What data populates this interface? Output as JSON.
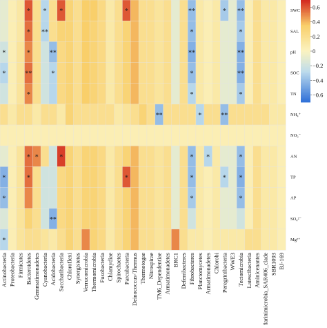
{
  "chart_data": {
    "type": "heatmap",
    "title": "",
    "xlabel": "",
    "ylabel": "",
    "x_categories": [
      "Actinobacteria",
      "Proteobacteria",
      "Firmicutes",
      "Bacteroidetes",
      "Gemmatimonadetes",
      "Cyanobacteria",
      "Acidobacteria",
      "Saccharibacteria",
      "Chloroflexi",
      "Synergistetes",
      "Verrucomicrobia",
      "Thermomicrobia",
      "Fusobacteria",
      "Chlamydiae",
      "Spirochaetes",
      "Parcubacteria",
      "Deinococcus-Thermus",
      "Thermotogae",
      "Nitrospirae",
      "TM6_Dependentiae",
      "Armatimonadetes",
      "BRC1",
      "Deferribacteres",
      "Fibrobacteres",
      "Planctomycetes",
      "Armatimonadetes",
      "Chlorobi",
      "Peregrinibacteria",
      "WWE3",
      "Tectomicrobia",
      "Latescibacteria",
      "Aminicenantes",
      "Marinimicrobia_SAR406_clade",
      "SBR1093",
      "BJ-169"
    ],
    "y_categories": [
      "SWC",
      "SAL",
      "pH",
      "SOC",
      "TN",
      "NH₄⁺",
      "NO₃⁻",
      "AN",
      "TP",
      "AP",
      "SO₄²⁻",
      "Mg²⁺"
    ],
    "values": [
      [
        -0.1,
        0.05,
        0.12,
        0.6,
        0.2,
        -0.3,
        0.2,
        0.6,
        0.3,
        0.2,
        0.35,
        0.35,
        0.25,
        0.1,
        0.2,
        0.6,
        0.4,
        0.2,
        0.2,
        0.15,
        0.2,
        -0.1,
        0.2,
        -0.4,
        0.1,
        0.05,
        0.1,
        -0.35,
        -0.1,
        -0.4,
        0.05,
        0.2,
        0.1,
        0.1,
        0.05
      ],
      [
        -0.1,
        0.05,
        0.12,
        0.55,
        0.2,
        -0.3,
        0.2,
        0.3,
        0.3,
        0.2,
        0.35,
        0.3,
        0.25,
        0.1,
        0.2,
        0.3,
        0.4,
        0.2,
        0.2,
        0.15,
        0.2,
        -0.1,
        0.2,
        -0.4,
        0.1,
        0.05,
        0.1,
        -0.1,
        -0.1,
        -0.35,
        0.05,
        0.2,
        0.1,
        0.1,
        0.05
      ],
      [
        -0.2,
        0.05,
        0.15,
        0.5,
        0.2,
        -0.2,
        -0.4,
        0.25,
        0.3,
        0.2,
        0.35,
        0.3,
        0.25,
        0.1,
        0.2,
        0.3,
        0.4,
        0.2,
        0.2,
        0.15,
        0.2,
        -0.1,
        0.2,
        -0.45,
        0.1,
        0.05,
        0.1,
        -0.1,
        -0.1,
        -0.45,
        0.05,
        0.2,
        0.1,
        0.1,
        0.05
      ],
      [
        -0.3,
        0.05,
        0.15,
        0.55,
        0.2,
        -0.2,
        -0.3,
        0.25,
        0.3,
        0.2,
        0.35,
        0.3,
        0.25,
        0.1,
        0.2,
        0.3,
        0.4,
        0.2,
        0.2,
        0.15,
        0.2,
        -0.1,
        0.2,
        -0.4,
        0.1,
        0.05,
        0.1,
        -0.1,
        -0.1,
        -0.45,
        0.05,
        0.2,
        0.1,
        0.1,
        0.05
      ],
      [
        -0.2,
        0.05,
        0.15,
        0.5,
        0.2,
        -0.2,
        -0.3,
        0.25,
        0.3,
        0.2,
        0.35,
        0.3,
        0.25,
        0.1,
        0.2,
        0.3,
        0.4,
        0.2,
        0.2,
        0.15,
        0.2,
        -0.1,
        0.2,
        -0.3,
        0.1,
        0.05,
        0.1,
        -0.1,
        -0.1,
        -0.35,
        0.05,
        0.2,
        0.1,
        0.1,
        0.05
      ],
      [
        0.2,
        0.1,
        0.2,
        0.2,
        0.1,
        0.2,
        0.2,
        0.1,
        0.3,
        0.2,
        0.2,
        0.2,
        0.2,
        0.2,
        0.1,
        0.15,
        0.2,
        0.3,
        0.2,
        -0.4,
        0.2,
        0.2,
        0.2,
        0.2,
        -0.3,
        0.2,
        0.2,
        -0.4,
        0.2,
        0.2,
        0.2,
        0.2,
        0.2,
        0.1,
        0.1
      ],
      [
        0.05,
        0.05,
        0.05,
        0.05,
        0.05,
        0.05,
        0.05,
        0.05,
        0.05,
        0.05,
        0.05,
        0.05,
        0.05,
        0.05,
        0.05,
        0.05,
        0.05,
        0.05,
        0.05,
        0.05,
        0.05,
        0.05,
        0.05,
        0.05,
        0.05,
        0.05,
        0.05,
        0.05,
        0.05,
        0.05,
        0.05,
        0.05,
        0.05,
        0.05,
        0.05
      ],
      [
        -0.1,
        0.05,
        0.15,
        0.55,
        0.5,
        0.2,
        -0.2,
        0.65,
        0.3,
        0.2,
        0.3,
        0.3,
        0.25,
        0.1,
        0.2,
        0.3,
        0.4,
        0.2,
        0.2,
        0.15,
        0.2,
        -0.1,
        0.2,
        -0.4,
        0.1,
        -0.3,
        0.1,
        -0.1,
        -0.1,
        -0.4,
        0.05,
        0.2,
        0.1,
        0.1,
        0.05
      ],
      [
        -0.45,
        0.05,
        0.15,
        0.55,
        0.2,
        -0.2,
        -0.2,
        0.25,
        0.3,
        0.2,
        0.3,
        0.3,
        0.25,
        0.1,
        0.2,
        0.6,
        0.4,
        0.2,
        0.2,
        0.15,
        0.2,
        -0.1,
        0.2,
        -0.4,
        0.1,
        0.05,
        0.1,
        -0.3,
        -0.1,
        -0.45,
        0.05,
        0.2,
        0.1,
        0.1,
        0.05
      ],
      [
        -0.4,
        0.05,
        0.15,
        0.5,
        0.2,
        -0.2,
        -0.2,
        0.25,
        0.3,
        0.2,
        0.3,
        0.3,
        0.25,
        0.1,
        0.2,
        0.3,
        0.4,
        0.2,
        0.2,
        0.15,
        0.2,
        -0.1,
        0.2,
        -0.35,
        0.1,
        0.05,
        0.1,
        -0.1,
        -0.1,
        -0.4,
        0.05,
        0.2,
        0.1,
        0.1,
        0.05
      ],
      [
        -0.15,
        0.05,
        0.15,
        0.3,
        0.2,
        -0.2,
        -0.45,
        0.25,
        0.3,
        0.2,
        0.3,
        0.3,
        0.25,
        0.1,
        0.2,
        0.3,
        0.4,
        0.2,
        0.2,
        0.15,
        0.2,
        -0.1,
        0.2,
        -0.2,
        0.1,
        0.05,
        0.1,
        -0.1,
        -0.1,
        -0.2,
        0.05,
        0.2,
        0.1,
        0.1,
        0.05
      ],
      [
        -0.3,
        0.05,
        0.15,
        0.2,
        0.2,
        0.15,
        0.1,
        0.2,
        0.3,
        0.2,
        0.5,
        0.3,
        0.25,
        0.1,
        0.2,
        0.3,
        0.4,
        0.2,
        0.2,
        0.15,
        0.2,
        0.5,
        0.2,
        0.1,
        0.1,
        0.05,
        0.1,
        0.1,
        0.1,
        0.1,
        0.2,
        0.2,
        0.1,
        0.1,
        0.05
      ]
    ],
    "significance": [
      {
        "row": 0,
        "col": 3,
        "label": "*"
      },
      {
        "row": 0,
        "col": 5,
        "label": "*"
      },
      {
        "row": 0,
        "col": 7,
        "label": "*"
      },
      {
        "row": 0,
        "col": 15,
        "label": "*"
      },
      {
        "row": 0,
        "col": 23,
        "label": "**"
      },
      {
        "row": 0,
        "col": 27,
        "label": "*"
      },
      {
        "row": 0,
        "col": 29,
        "label": "**"
      },
      {
        "row": 1,
        "col": 3,
        "label": "*"
      },
      {
        "row": 1,
        "col": 5,
        "label": "**"
      },
      {
        "row": 1,
        "col": 23,
        "label": "*"
      },
      {
        "row": 1,
        "col": 29,
        "label": "*"
      },
      {
        "row": 2,
        "col": 0,
        "label": "*"
      },
      {
        "row": 2,
        "col": 3,
        "label": "*"
      },
      {
        "row": 2,
        "col": 6,
        "label": "**"
      },
      {
        "row": 2,
        "col": 23,
        "label": "**"
      },
      {
        "row": 2,
        "col": 29,
        "label": "**"
      },
      {
        "row": 3,
        "col": 0,
        "label": "*"
      },
      {
        "row": 3,
        "col": 3,
        "label": "**"
      },
      {
        "row": 3,
        "col": 6,
        "label": "*"
      },
      {
        "row": 3,
        "col": 23,
        "label": "*"
      },
      {
        "row": 3,
        "col": 29,
        "label": "**"
      },
      {
        "row": 4,
        "col": 3,
        "label": "*"
      },
      {
        "row": 4,
        "col": 23,
        "label": "*"
      },
      {
        "row": 4,
        "col": 29,
        "label": "*"
      },
      {
        "row": 5,
        "col": 19,
        "label": "**"
      },
      {
        "row": 5,
        "col": 24,
        "label": "*"
      },
      {
        "row": 5,
        "col": 27,
        "label": "**"
      },
      {
        "row": 7,
        "col": 3,
        "label": "*"
      },
      {
        "row": 7,
        "col": 4,
        "label": "*"
      },
      {
        "row": 7,
        "col": 7,
        "label": "*"
      },
      {
        "row": 7,
        "col": 23,
        "label": "*"
      },
      {
        "row": 7,
        "col": 25,
        "label": "*"
      },
      {
        "row": 7,
        "col": 29,
        "label": "*"
      },
      {
        "row": 8,
        "col": 0,
        "label": "*"
      },
      {
        "row": 8,
        "col": 3,
        "label": "*"
      },
      {
        "row": 8,
        "col": 15,
        "label": "*"
      },
      {
        "row": 8,
        "col": 23,
        "label": "*"
      },
      {
        "row": 8,
        "col": 27,
        "label": "*"
      },
      {
        "row": 8,
        "col": 29,
        "label": "*"
      },
      {
        "row": 9,
        "col": 0,
        "label": "*"
      },
      {
        "row": 9,
        "col": 23,
        "label": "*"
      },
      {
        "row": 9,
        "col": 29,
        "label": "*"
      },
      {
        "row": 10,
        "col": 6,
        "label": "**"
      },
      {
        "row": 11,
        "col": 0,
        "label": "*"
      }
    ],
    "colorbar": {
      "ticks": [
        0.6,
        0.4,
        0.2,
        0,
        -0.2,
        -0.4,
        -0.6
      ],
      "tick_labels": [
        "0.6",
        "0.4",
        "0.2",
        "0",
        "−0.2",
        "−0.4",
        "−0.6"
      ],
      "range": [
        -0.7,
        0.7
      ],
      "colors": {
        "neg": "#2e6fd8",
        "neutral": "#fbf3c0",
        "mid": "#f9cf6a",
        "pos": "#d3271e"
      }
    },
    "legend": "right"
  }
}
